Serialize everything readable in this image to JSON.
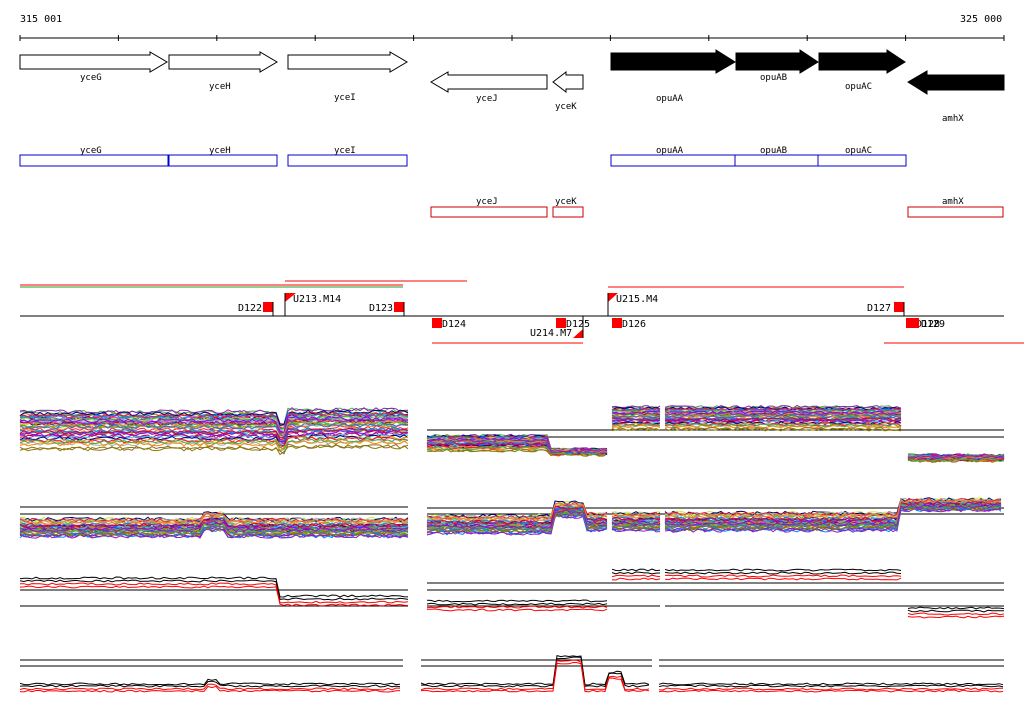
{
  "ruler": {
    "start_label": "315 001",
    "end_label": "325 000"
  },
  "genes": [
    {
      "name": "yceG",
      "strand": "+",
      "fill": "white"
    },
    {
      "name": "yceH",
      "strand": "+",
      "fill": "white"
    },
    {
      "name": "yceI",
      "strand": "+",
      "fill": "white"
    },
    {
      "name": "yceJ",
      "strand": "-",
      "fill": "white"
    },
    {
      "name": "yceK",
      "strand": "-",
      "fill": "white"
    },
    {
      "name": "opuAA",
      "strand": "+",
      "fill": "black"
    },
    {
      "name": "opuAB",
      "strand": "+",
      "fill": "black"
    },
    {
      "name": "opuAC",
      "strand": "+",
      "fill": "black"
    },
    {
      "name": "amhX",
      "strand": "-",
      "fill": "black"
    }
  ],
  "annotation_boxes": {
    "forward": [
      {
        "name": "yceG"
      },
      {
        "name": "yceH"
      },
      {
        "name": "yceI"
      },
      {
        "name": "opuAA"
      },
      {
        "name": "opuAB"
      },
      {
        "name": "opuAC"
      }
    ],
    "reverse": [
      {
        "name": "yceJ"
      },
      {
        "name": "yceK"
      },
      {
        "name": "amhX"
      }
    ],
    "forward_color": "#0000cc",
    "reverse_color": "#cc0000"
  },
  "transcription_marks": [
    {
      "label": "D122"
    },
    {
      "label": "U213.M14"
    },
    {
      "label": "D123"
    },
    {
      "label": "D124"
    },
    {
      "label": "U214.M7"
    },
    {
      "label": "D125"
    },
    {
      "label": "D126"
    },
    {
      "label": "U215.M4"
    },
    {
      "label": "D127"
    },
    {
      "label": "D128"
    },
    {
      "label": "D129"
    }
  ],
  "colors": {
    "mark": "#ff0000",
    "axis": "#000000"
  }
}
